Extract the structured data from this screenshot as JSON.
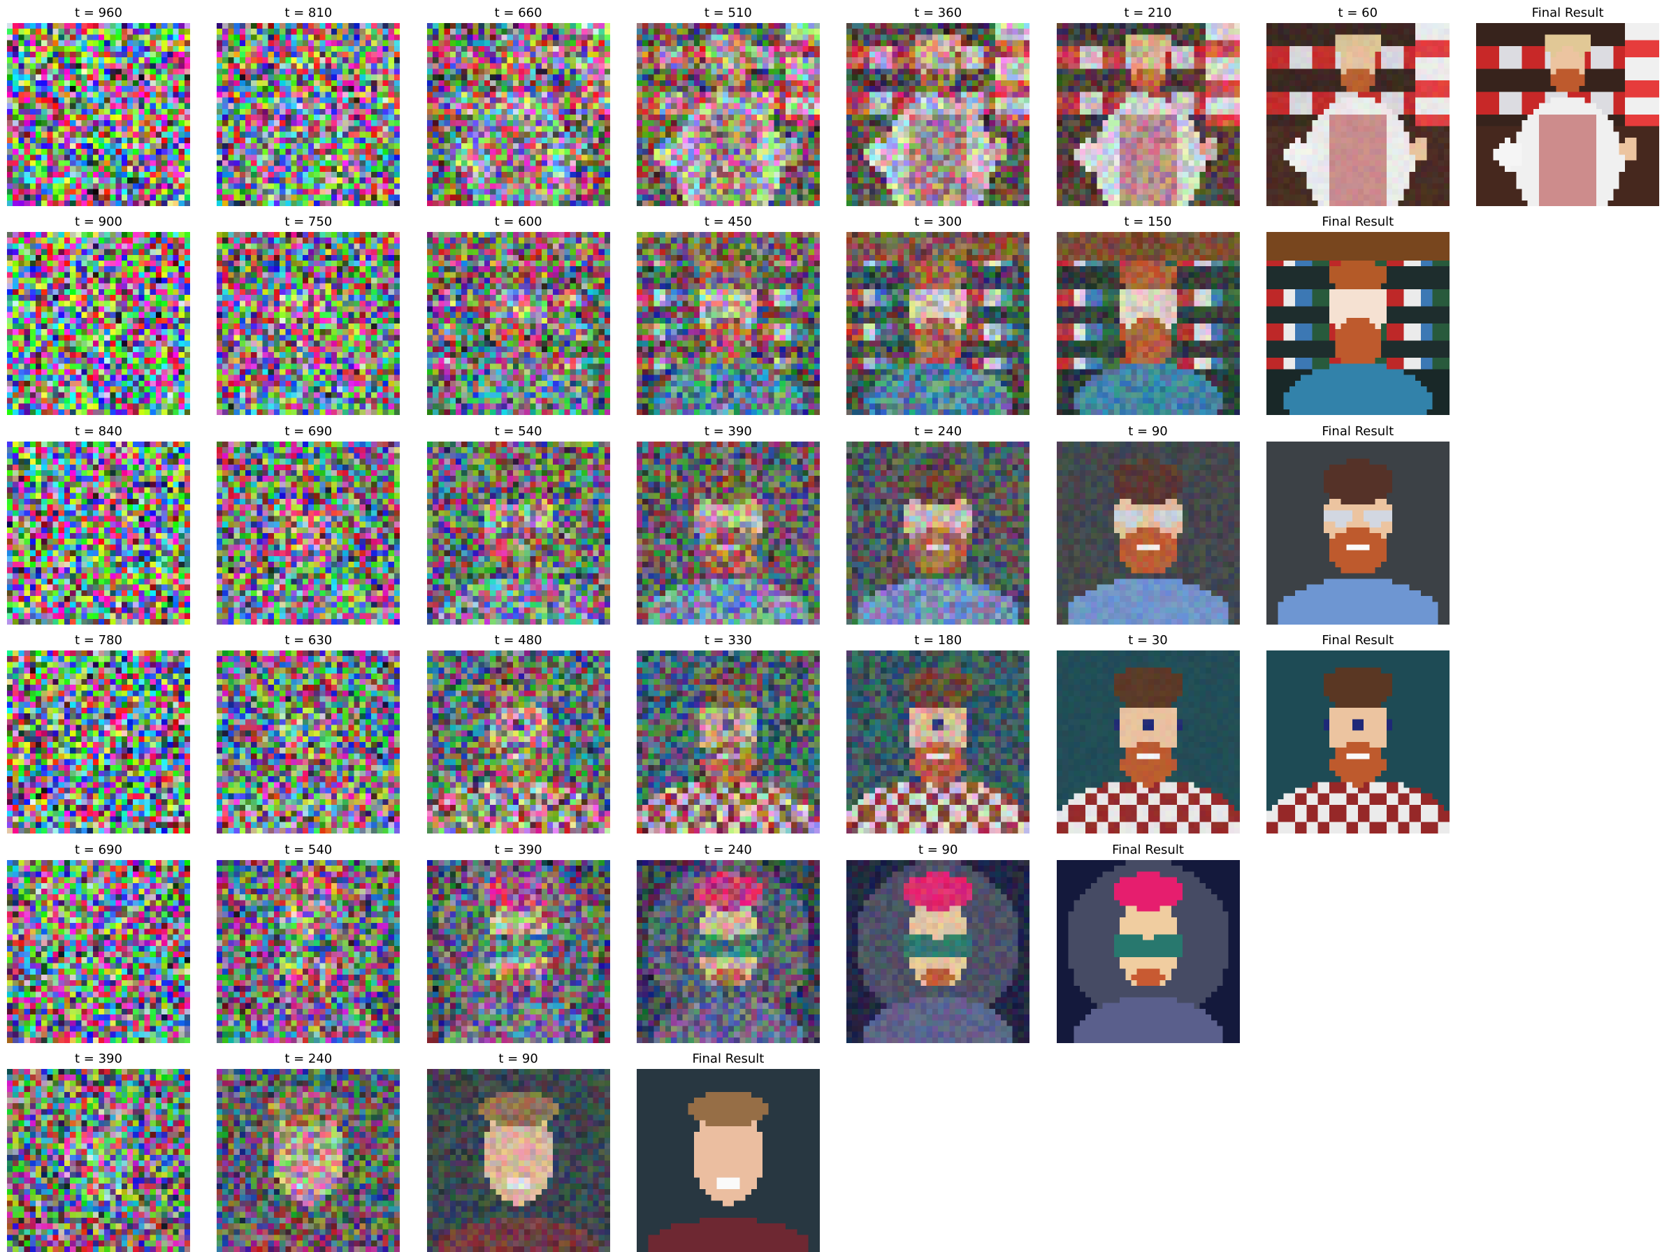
{
  "figure": {
    "rows": [
      {
        "subject": "barista",
        "frames": [
          {
            "label": "t = 960",
            "noise": 0.98
          },
          {
            "label": "t = 810",
            "noise": 0.88
          },
          {
            "label": "t = 660",
            "noise": 0.75
          },
          {
            "label": "t = 510",
            "noise": 0.6
          },
          {
            "label": "t = 360",
            "noise": 0.45
          },
          {
            "label": "t = 210",
            "noise": 0.28
          },
          {
            "label": "t = 60",
            "noise": 0.06
          },
          {
            "label": "Final Result",
            "noise": 0
          }
        ]
      },
      {
        "subject": "bearded-shop",
        "frames": [
          {
            "label": "t = 900",
            "noise": 0.97
          },
          {
            "label": "t = 750",
            "noise": 0.85
          },
          {
            "label": "t = 600",
            "noise": 0.7
          },
          {
            "label": "t = 450",
            "noise": 0.55
          },
          {
            "label": "t = 300",
            "noise": 0.38
          },
          {
            "label": "t = 150",
            "noise": 0.2
          },
          {
            "label": "Final Result",
            "noise": 0
          }
        ]
      },
      {
        "subject": "glasses-man",
        "frames": [
          {
            "label": "t = 840",
            "noise": 0.96
          },
          {
            "label": "t = 690",
            "noise": 0.82
          },
          {
            "label": "t = 540",
            "noise": 0.66
          },
          {
            "label": "t = 390",
            "noise": 0.5
          },
          {
            "label": "t = 240",
            "noise": 0.32
          },
          {
            "label": "t = 90",
            "noise": 0.1
          },
          {
            "label": "Final Result",
            "noise": 0
          }
        ]
      },
      {
        "subject": "plaid-man",
        "frames": [
          {
            "label": "t = 780",
            "noise": 0.95
          },
          {
            "label": "t = 630",
            "noise": 0.8
          },
          {
            "label": "t = 480",
            "noise": 0.62
          },
          {
            "label": "t = 330",
            "noise": 0.46
          },
          {
            "label": "t = 180",
            "noise": 0.26
          },
          {
            "label": "t = 30",
            "noise": 0.04
          },
          {
            "label": "Final Result",
            "noise": 0
          }
        ]
      },
      {
        "subject": "cartoon",
        "frames": [
          {
            "label": "t = 690",
            "noise": 0.9
          },
          {
            "label": "t = 540",
            "noise": 0.72
          },
          {
            "label": "t = 390",
            "noise": 0.55
          },
          {
            "label": "t = 240",
            "noise": 0.35
          },
          {
            "label": "t = 90",
            "noise": 0.12
          },
          {
            "label": "Final Result",
            "noise": 0
          }
        ]
      },
      {
        "subject": "portrait",
        "frames": [
          {
            "label": "t = 390",
            "noise": 0.8
          },
          {
            "label": "t = 240",
            "noise": 0.55
          },
          {
            "label": "t = 90",
            "noise": 0.2
          },
          {
            "label": "Final Result",
            "noise": 0
          }
        ]
      }
    ]
  }
}
